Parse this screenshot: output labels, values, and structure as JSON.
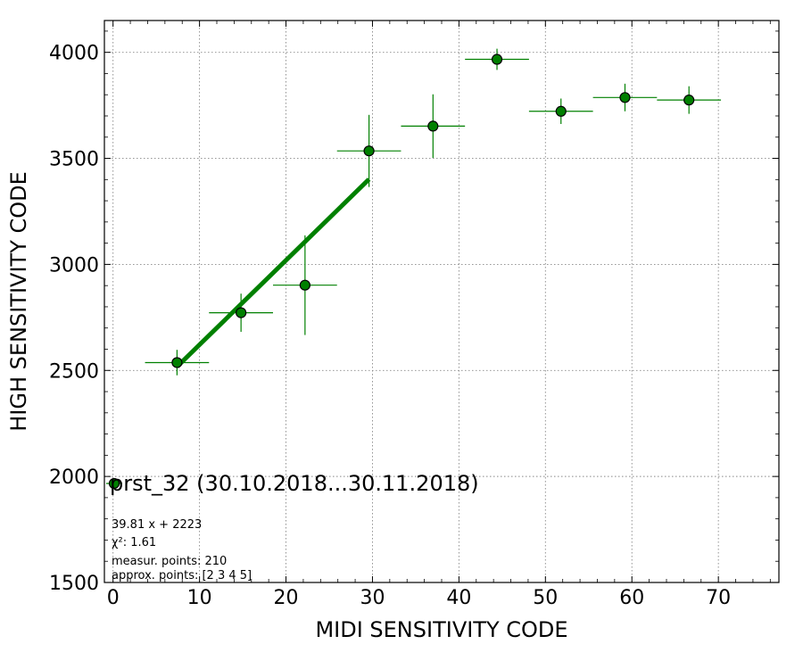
{
  "chart_data": {
    "type": "scatter",
    "xlabel": "MIDI SENSITIVITY CODE",
    "ylabel": "HIGH SENSITIVITY CODE",
    "xlim": [
      -1,
      77
    ],
    "ylim": [
      1500,
      4150
    ],
    "xticks": [
      0,
      10,
      20,
      30,
      40,
      50,
      60,
      70
    ],
    "yticks": [
      1500,
      2000,
      2500,
      3000,
      3500,
      4000
    ],
    "grid": true,
    "legend": {
      "label": "prst_32 (30.10.2018...30.11.2018)",
      "placement": "lower-left"
    },
    "series": [
      {
        "name": "prst_32 (30.10.2018...30.11.2018)",
        "color": "#008000",
        "points": [
          {
            "x": 7.4,
            "y": 2537,
            "xerr": 3.7,
            "yerr": 60
          },
          {
            "x": 14.8,
            "y": 2772,
            "xerr": 3.7,
            "yerr": 90
          },
          {
            "x": 22.2,
            "y": 2902,
            "xerr": 3.7,
            "yerr": 235
          },
          {
            "x": 29.6,
            "y": 3535,
            "xerr": 3.7,
            "yerr": 170
          },
          {
            "x": 37.0,
            "y": 3652,
            "xerr": 3.7,
            "yerr": 150
          },
          {
            "x": 44.4,
            "y": 3967,
            "xerr": 3.7,
            "yerr": 50
          },
          {
            "x": 51.8,
            "y": 3722,
            "xerr": 3.7,
            "yerr": 60
          },
          {
            "x": 59.2,
            "y": 3787,
            "xerr": 3.7,
            "yerr": 65
          },
          {
            "x": 66.6,
            "y": 3775,
            "xerr": 3.7,
            "yerr": 65
          }
        ]
      }
    ],
    "fit": {
      "slope": 39.81,
      "intercept": 2223,
      "x_range": [
        7.4,
        29.6
      ],
      "color": "#008000"
    },
    "annotations": [
      "39.81 x + 2223",
      "χ²: 1.61",
      "measur. points: 210",
      "approx. points: [2 3 4 5]"
    ]
  }
}
